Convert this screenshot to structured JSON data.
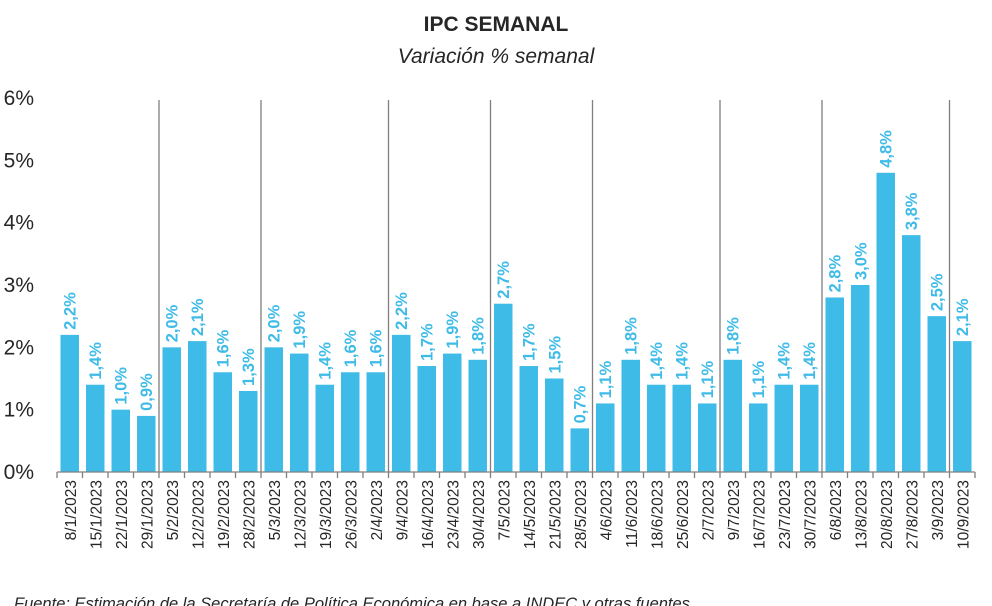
{
  "chart_data": {
    "type": "bar",
    "title": "IPC SEMANAL",
    "subtitle": "Variación % semanal",
    "source": "Fuente: Estimación de la Secretaría de Política Económica en base a INDEC y otras fuentes",
    "categories": [
      "8/1/2023",
      "15/1/2023",
      "22/1/2023",
      "29/1/2023",
      "5/2/2023",
      "12/2/2023",
      "19/2/2023",
      "28/2/2023",
      "5/3/2023",
      "12/3/2023",
      "19/3/2023",
      "26/3/2023",
      "2/4/2023",
      "9/4/2023",
      "16/4/2023",
      "23/4/2023",
      "30/4/2023",
      "7/5/2023",
      "14/5/2023",
      "21/5/2023",
      "28/5/2023",
      "4/6/2023",
      "11/6/2023",
      "18/6/2023",
      "25/6/2023",
      "2/7/2023",
      "9/7/2023",
      "16/7/2023",
      "23/7/2023",
      "30/7/2023",
      "6/8/2023",
      "13/8/2023",
      "20/8/2023",
      "27/8/2023",
      "3/9/2023",
      "10/9/2023"
    ],
    "values": [
      2.2,
      1.4,
      1.0,
      0.9,
      2.0,
      2.1,
      1.6,
      1.3,
      2.0,
      1.9,
      1.4,
      1.6,
      1.6,
      2.2,
      1.7,
      1.9,
      1.8,
      2.7,
      1.7,
      1.5,
      0.7,
      1.1,
      1.8,
      1.4,
      1.4,
      1.1,
      1.8,
      1.1,
      1.4,
      1.4,
      2.8,
      3.0,
      4.8,
      3.8,
      2.5,
      2.1
    ],
    "data_labels": [
      "2,2%",
      "1,4%",
      "1,0%",
      "0,9%",
      "2,0%",
      "2,1%",
      "1,6%",
      "1,3%",
      "2,0%",
      "1,9%",
      "1,4%",
      "1,6%",
      "1,6%",
      "2,2%",
      "1,7%",
      "1,9%",
      "1,8%",
      "2,7%",
      "1,7%",
      "1,5%",
      "0,7%",
      "1,1%",
      "1,8%",
      "1,4%",
      "1,4%",
      "1,1%",
      "1,8%",
      "1,1%",
      "1,4%",
      "1,4%",
      "2,8%",
      "3,0%",
      "4,8%",
      "3,8%",
      "2,5%",
      "2,1%"
    ],
    "yticks": [
      "0%",
      "1%",
      "2%",
      "3%",
      "4%",
      "5%",
      "6%"
    ],
    "ylim": [
      0,
      6
    ],
    "month_separators_after": [
      3,
      7,
      12,
      16,
      20,
      25,
      29,
      34
    ],
    "grid": false,
    "legend": "none",
    "colors": {
      "bar": "#3fbbe8",
      "label": "#3fbbe8",
      "separator": "#7f7f7f",
      "axis": "#7f7f7f"
    }
  }
}
